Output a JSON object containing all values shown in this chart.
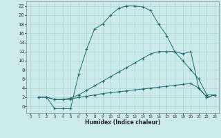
{
  "xlabel": "Humidex (Indice chaleur)",
  "bg_color": "#cceaea",
  "grid_color": "#aad4d4",
  "line_color": "#1a6b6b",
  "xlim": [
    -0.5,
    23.5
  ],
  "ylim": [
    -1.5,
    23
  ],
  "xticks": [
    0,
    1,
    2,
    3,
    4,
    5,
    6,
    7,
    8,
    9,
    10,
    11,
    12,
    13,
    14,
    15,
    16,
    17,
    18,
    19,
    20,
    21,
    22,
    23
  ],
  "yticks": [
    0,
    2,
    4,
    6,
    8,
    10,
    12,
    14,
    16,
    18,
    20,
    22
  ],
  "line1_x": [
    1,
    2,
    3,
    4,
    5,
    6,
    7,
    8,
    9,
    10,
    11,
    12,
    13,
    14,
    15,
    16,
    17,
    18,
    19,
    20,
    21,
    22,
    23
  ],
  "line1_y": [
    2,
    2,
    -0.5,
    -0.5,
    -0.5,
    7,
    12.5,
    17,
    18,
    20,
    21.5,
    22,
    22,
    21.8,
    21,
    18,
    15.5,
    12,
    10,
    8,
    6,
    2.5,
    2.5
  ],
  "line2_x": [
    1,
    2,
    3,
    4,
    5,
    6,
    7,
    8,
    9,
    10,
    11,
    12,
    13,
    14,
    15,
    16,
    17,
    18,
    19,
    20,
    21,
    22,
    23
  ],
  "line2_y": [
    2,
    2,
    1.5,
    1.5,
    1.8,
    2.5,
    3.5,
    4.5,
    5.5,
    6.5,
    7.5,
    8.5,
    9.5,
    10.5,
    11.5,
    12.0,
    12.0,
    12.0,
    11.5,
    12,
    4,
    2,
    2.5
  ],
  "line3_x": [
    1,
    2,
    3,
    4,
    5,
    6,
    7,
    8,
    9,
    10,
    11,
    12,
    13,
    14,
    15,
    16,
    17,
    18,
    19,
    20,
    21,
    22,
    23
  ],
  "line3_y": [
    2,
    2,
    1.5,
    1.5,
    1.5,
    2,
    2.2,
    2.5,
    2.8,
    3.0,
    3.2,
    3.4,
    3.6,
    3.8,
    4.0,
    4.2,
    4.4,
    4.6,
    4.8,
    5.0,
    4,
    2,
    2.5
  ]
}
